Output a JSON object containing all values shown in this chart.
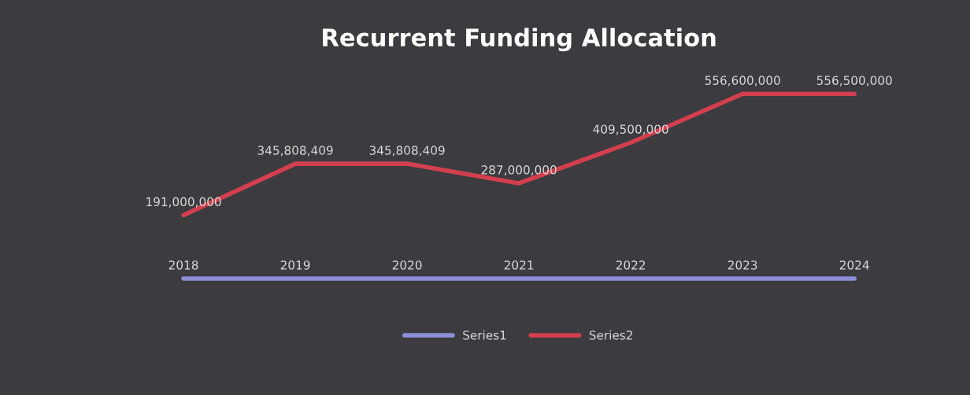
{
  "chart_data": {
    "type": "line",
    "title": "Recurrent Funding Allocation",
    "categories": [
      null,
      null,
      null,
      null,
      null,
      null,
      null
    ],
    "series": [
      {
        "name": "Series1",
        "color": "#8c8fd6",
        "values": [
          2018,
          2019,
          2020,
          2021,
          2022,
          2023,
          2024
        ],
        "value_labels": [
          "2018",
          "2019",
          "2020",
          "2021",
          "2022",
          "2023",
          "2024"
        ]
      },
      {
        "name": "Series2",
        "color": "#d23f4e",
        "values": [
          191000000,
          345808409,
          345808409,
          287000000,
          409500000,
          556600000,
          556500000
        ],
        "value_labels": [
          "191,000,000",
          "345,808,409",
          "345,808,409",
          "287,000,000",
          "409,500,000",
          "556,600,000",
          "556,500,000"
        ]
      }
    ],
    "legend": "bottom",
    "grid": false,
    "marker": "none",
    "line_style": "solid"
  }
}
